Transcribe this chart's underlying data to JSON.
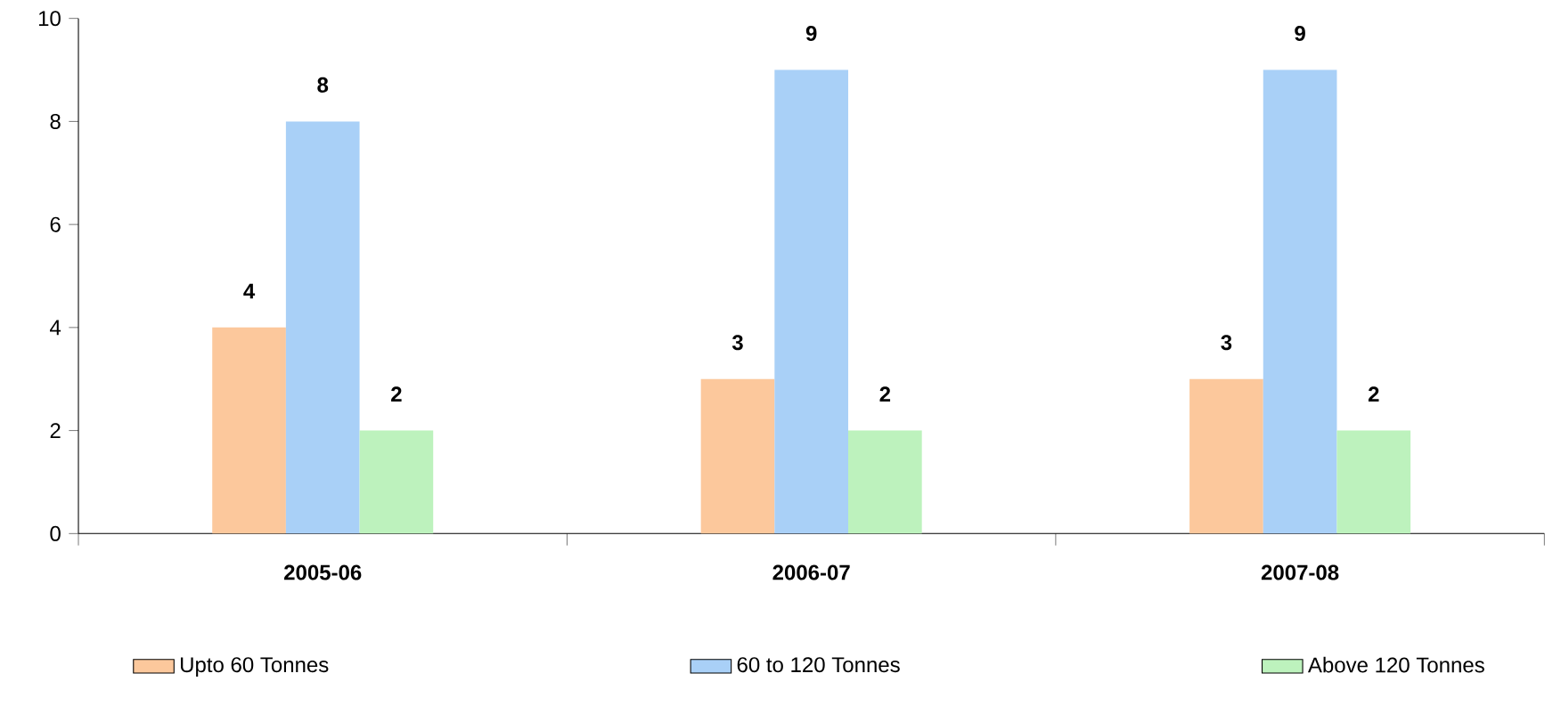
{
  "chart_data": {
    "type": "bar",
    "categories": [
      "2005-06",
      "2006-07",
      "2007-08"
    ],
    "series": [
      {
        "name": "Upto 60 Tonnes",
        "color": "#fcc89c",
        "values": [
          4,
          3,
          3
        ]
      },
      {
        "name": "60 to 120 Tonnes",
        "color": "#a9d0f7",
        "values": [
          8,
          9,
          9
        ]
      },
      {
        "name": "Above 120 Tonnes",
        "color": "#bdf2bd",
        "values": [
          2,
          2,
          2
        ]
      }
    ],
    "ylim": [
      0,
      10
    ],
    "yticks": [
      0,
      2,
      4,
      6,
      8,
      10
    ],
    "data_labels": true,
    "legend": "bottom",
    "grid": false
  }
}
